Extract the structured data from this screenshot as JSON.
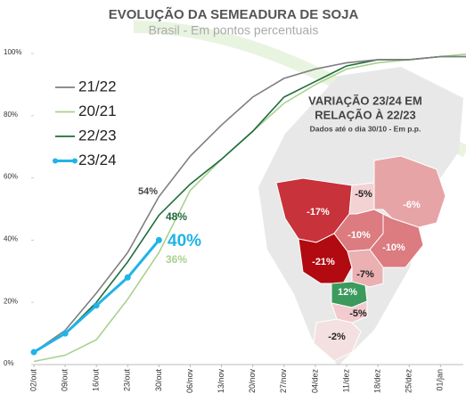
{
  "chart_data": {
    "type": "line",
    "title": "EVOLUÇÃO DA SEMEADURA DE SOJA",
    "subtitle": "Brasil -  Em pontos percentuais",
    "categories": [
      "02/out",
      "09/out",
      "16/out",
      "23/out",
      "30/out",
      "06/nov",
      "13/nov",
      "20/nov",
      "27/nov",
      "04/dez",
      "11/dez",
      "18/dez",
      "25/dez",
      "01/jan",
      null
    ],
    "ylim": [
      0,
      100
    ],
    "yticks": [
      {
        "value": 0,
        "label": "0%"
      },
      {
        "value": 20,
        "label": "20%"
      },
      {
        "value": 40,
        "label": "40%"
      },
      {
        "value": 60,
        "label": "60%"
      },
      {
        "value": 80,
        "label": "80%"
      },
      {
        "value": 100,
        "label": "100%"
      }
    ],
    "legend": "top-left",
    "series": [
      {
        "name": "21/22",
        "color": "#7f7f7f",
        "values": [
          4,
          11,
          23,
          36,
          54,
          67,
          77,
          86,
          92,
          95,
          97,
          98,
          98,
          99,
          99
        ],
        "value_labels": [
          null,
          null,
          null,
          null,
          "54%",
          null,
          null,
          null,
          null,
          null,
          null,
          null,
          null,
          null,
          null
        ]
      },
      {
        "name": "20/21",
        "color": "#a9d18e",
        "values": [
          1,
          3,
          8,
          21,
          36,
          56,
          66,
          75,
          84,
          90,
          95,
          97,
          98,
          99,
          100
        ],
        "value_labels": [
          null,
          null,
          null,
          null,
          "36%",
          null,
          null,
          null,
          null,
          null,
          null,
          null,
          null,
          null,
          null
        ]
      },
      {
        "name": "22/23",
        "color": "#1e6b3c",
        "values": [
          4,
          10,
          20,
          33,
          48,
          58,
          66,
          75,
          86,
          91,
          96,
          98,
          98,
          99,
          99
        ],
        "value_labels": [
          null,
          null,
          null,
          null,
          "48%",
          null,
          null,
          null,
          null,
          null,
          null,
          null,
          null,
          null,
          null
        ]
      },
      {
        "name": "23/24",
        "color": "#1fb4e8",
        "markers": true,
        "values": [
          4,
          10,
          19,
          28,
          40,
          null,
          null,
          null,
          null,
          null,
          null,
          null,
          null,
          null,
          null
        ],
        "value_labels": [
          null,
          null,
          null,
          null,
          "40%",
          null,
          null,
          null,
          null,
          null,
          null,
          null,
          null,
          null,
          null
        ]
      }
    ],
    "map": {
      "title": [
        "VARIAÇÃO 23/24 EM",
        "RELAÇÃO À 22/23"
      ],
      "note": "Dados até o dia 30/10 - Em p.p.",
      "regions": [
        {
          "value": -17,
          "label": "-17%",
          "color": "#c8323a",
          "text_color": "#ffffff"
        },
        {
          "value": -5,
          "label": "-5%",
          "color": "#f3d2d3",
          "text_color": "#222222"
        },
        {
          "value": -6,
          "label": "-6%",
          "color": "#e6a4a6",
          "text_color": "#ffffff"
        },
        {
          "value": -10,
          "label": "-10%",
          "color": "#dc7b80",
          "text_color": "#ffffff"
        },
        {
          "value": -10,
          "label": "-10%",
          "color": "#dc7b80",
          "text_color": "#ffffff"
        },
        {
          "value": -21,
          "label": "-21%",
          "color": "#b10a10",
          "text_color": "#ffffff"
        },
        {
          "value": -7,
          "label": "-7%",
          "color": "#eab0b2",
          "text_color": "#222222"
        },
        {
          "value": 12,
          "label": "12%",
          "color": "#3c9a5c",
          "text_color": "#ffffff"
        },
        {
          "value": -5,
          "label": "-5%",
          "color": "#f1cbcd",
          "text_color": "#222222"
        },
        {
          "value": -2,
          "label": "-2%",
          "color": "#f4e0e1",
          "text_color": "#222222"
        }
      ]
    }
  }
}
